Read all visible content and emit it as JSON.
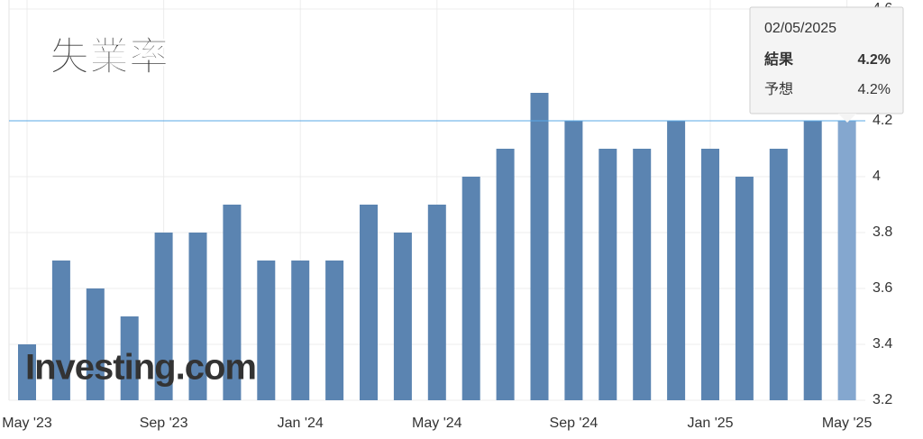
{
  "chart_data": {
    "type": "bar",
    "title": "失業率",
    "watermark": "Investing.com",
    "categories": [
      "May '23",
      null,
      null,
      null,
      "Sep '23",
      null,
      null,
      null,
      "Jan '24",
      null,
      null,
      null,
      "May '24",
      null,
      null,
      null,
      "Sep '24",
      null,
      null,
      null,
      "Jan '25",
      null,
      null,
      null,
      "May '25"
    ],
    "values": [
      3.4,
      3.7,
      3.6,
      3.5,
      3.8,
      3.8,
      3.9,
      3.7,
      3.7,
      3.7,
      3.9,
      3.8,
      3.9,
      4.0,
      4.1,
      4.3,
      4.2,
      4.1,
      4.1,
      4.2,
      4.1,
      4.0,
      4.1,
      4.2,
      4.2
    ],
    "color": "#5b84b1",
    "ylim": [
      3.2,
      4.6
    ],
    "yticks": [
      3.2,
      3.4,
      3.6,
      3.8,
      4,
      4.2,
      4.6
    ],
    "grid": true,
    "tooltip": {
      "date": "02/05/2025",
      "actual_label": "結果",
      "actual": "4.2%",
      "forecast_label": "予想",
      "forecast": "4.2%"
    }
  }
}
